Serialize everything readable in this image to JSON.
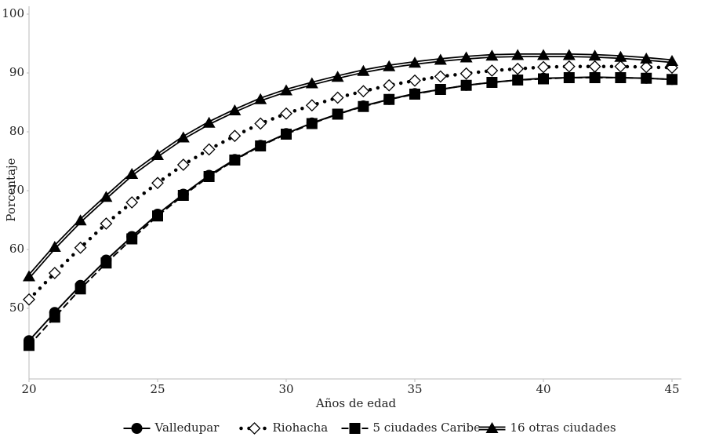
{
  "chart_data": {
    "type": "line",
    "x_label": "Años de edad",
    "y_label": "Porcentaje",
    "x": [
      20,
      21,
      22,
      23,
      24,
      25,
      26,
      27,
      28,
      29,
      30,
      31,
      32,
      33,
      34,
      35,
      36,
      37,
      38,
      39,
      40,
      41,
      42,
      43,
      44,
      45
    ],
    "xlim": [
      20,
      45
    ],
    "xticks": [
      20,
      25,
      30,
      35,
      40,
      45
    ],
    "ylim": [
      38,
      100
    ],
    "yticks": [
      50,
      60,
      70,
      80,
      90,
      100
    ],
    "legend": "bottom",
    "series": [
      {
        "name": "Valledupar",
        "color": "#000000",
        "marker": "circle",
        "line": "solid",
        "values": [
          44.5,
          49.3,
          53.9,
          58.2,
          62.2,
          66,
          69.4,
          72.6,
          75.3,
          77.7,
          79.7,
          81.5,
          83,
          84.4,
          85.5,
          86.5,
          87.2,
          87.9,
          88.4,
          88.8,
          89.1,
          89.2,
          89.3,
          89.2,
          89.1,
          88.9
        ]
      },
      {
        "name": "Riohacha",
        "color": "#000000",
        "marker": "diamond",
        "line": "dotted",
        "values": [
          51.5,
          56,
          60.3,
          64.4,
          68,
          71.3,
          74.4,
          77,
          79.3,
          81.4,
          83.1,
          84.5,
          85.8,
          86.9,
          87.9,
          88.7,
          89.4,
          89.9,
          90.4,
          90.7,
          91,
          91.1,
          91.1,
          91.1,
          91,
          90.9
        ]
      },
      {
        "name": "5 ciudades Caribe",
        "color": "#000000",
        "marker": "square",
        "line": "dashed",
        "values": [
          43.7,
          48.5,
          53.3,
          57.7,
          61.8,
          65.7,
          69.2,
          72.4,
          75.2,
          77.6,
          79.6,
          81.4,
          83,
          84.3,
          85.5,
          86.4,
          87.2,
          87.9,
          88.4,
          88.8,
          89,
          89.2,
          89.2,
          89.2,
          89.1,
          88.9
        ]
      },
      {
        "name": "16 otras ciudades",
        "color": "#000000",
        "marker": "triangle",
        "line": "double",
        "values": [
          55.4,
          60.4,
          64.9,
          68.9,
          72.8,
          76,
          79,
          81.5,
          83.6,
          85.5,
          87,
          88.2,
          89.3,
          90.3,
          91.1,
          91.7,
          92.2,
          92.6,
          92.9,
          93,
          93,
          93,
          92.9,
          92.7,
          92.4,
          92
        ]
      }
    ]
  }
}
